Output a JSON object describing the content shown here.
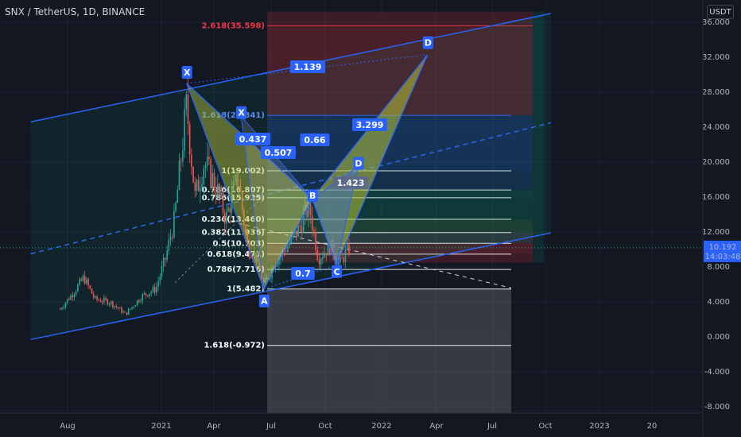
{
  "header": {
    "symbol_title": "SNX / TetherUS, 1D, BINANCE",
    "currency": "USDT"
  },
  "price_badge": {
    "price": "10.192",
    "countdown": "14:03:48",
    "color": "#2962ff"
  },
  "colors": {
    "background": "#131722",
    "channel": "#2962ff",
    "candle_up": "#26a69a",
    "candle_down": "#ef5350",
    "pattern_fill": "#b7c33a",
    "fib_extension_top": "#f23645",
    "fib_retrace_label": "#ffffff"
  },
  "chart_data": {
    "type": "candlestick",
    "title": "SNX / TetherUS, 1D, BINANCE",
    "y_unit": "USDT",
    "ylim": [
      -9,
      37
    ],
    "y_ticks": [
      "-8.000",
      "-4.000",
      "0.000",
      "4.000",
      "8.000",
      "12.000",
      "16.000",
      "20.000",
      "24.000",
      "28.000",
      "32.000",
      "36.000"
    ],
    "x_ticks": [
      "Aug",
      "2021",
      "Apr",
      "Jul",
      "Oct",
      "2022",
      "Apr",
      "Jul",
      "Oct",
      "2023",
      "20"
    ],
    "last_price": 10.192,
    "price_path": [
      {
        "t": "2020-07-20",
        "v": 3.2
      },
      {
        "t": "2020-08-10",
        "v": 5.0
      },
      {
        "t": "2020-08-28",
        "v": 6.8
      },
      {
        "t": "2020-09-15",
        "v": 4.3
      },
      {
        "t": "2020-10-10",
        "v": 4.0
      },
      {
        "t": "2020-11-05",
        "v": 2.6
      },
      {
        "t": "2020-12-01",
        "v": 4.6
      },
      {
        "t": "2020-12-25",
        "v": 5.5
      },
      {
        "t": "2021-01-10",
        "v": 9.0
      },
      {
        "t": "2021-01-25",
        "v": 13.5
      },
      {
        "t": "2021-02-14",
        "v": 26.5
      },
      {
        "t": "2021-02-28",
        "v": 16.0
      },
      {
        "t": "2021-03-15",
        "v": 20.0
      },
      {
        "t": "2021-04-05",
        "v": 17.0
      },
      {
        "t": "2021-04-20",
        "v": 13.5
      },
      {
        "t": "2021-05-10",
        "v": 18.5
      },
      {
        "t": "2021-05-25",
        "v": 10.5
      },
      {
        "t": "2021-06-10",
        "v": 9.0
      },
      {
        "t": "2021-06-22",
        "v": 5.8
      },
      {
        "t": "2021-07-10",
        "v": 8.5
      },
      {
        "t": "2021-08-01",
        "v": 10.5
      },
      {
        "t": "2021-08-20",
        "v": 12.5
      },
      {
        "t": "2021-09-05",
        "v": 15.0
      },
      {
        "t": "2021-09-20",
        "v": 9.0
      },
      {
        "t": "2021-10-10",
        "v": 10.5
      },
      {
        "t": "2021-10-25",
        "v": 8.2
      },
      {
        "t": "2021-11-05",
        "v": 9.7
      },
      {
        "t": "2021-11-12",
        "v": 10.2
      }
    ],
    "channel": {
      "upper": [
        {
          "t": "2020-06-01",
          "v": 24.6
        },
        {
          "t": "2022-10-10",
          "v": 37.0
        }
      ],
      "middle": [
        {
          "t": "2020-06-01",
          "v": 9.5
        },
        {
          "t": "2022-10-10",
          "v": 24.5
        }
      ],
      "lower": [
        {
          "t": "2020-06-01",
          "v": -0.3
        },
        {
          "t": "2022-10-10",
          "v": 11.9
        }
      ]
    },
    "harmonic_pattern": {
      "points": [
        {
          "label": "X",
          "t": "2021-02-14",
          "v": 29.0
        },
        {
          "label": "A",
          "t": "2021-06-22",
          "v": 5.482
        },
        {
          "label": "B",
          "t": "2021-09-10",
          "v": 15.8
        },
        {
          "label": "C",
          "t": "2021-10-20",
          "v": 8.2
        },
        {
          "label": "D",
          "t": "2022-03-20",
          "v": 32.3
        }
      ],
      "inner_points": [
        {
          "label": "X",
          "t": "2021-05-15",
          "v": 25.3
        },
        {
          "label": "D",
          "t": "2021-11-25",
          "v": 19.5
        }
      ],
      "ratios": [
        "1.139",
        "0.437",
        "0.507",
        "0.66",
        "3.299",
        "1.423",
        "0.7"
      ]
    },
    "fib_levels": [
      {
        "label": "2.618(35.598)",
        "price": 35.598
      },
      {
        "label": "1.618(25.341)",
        "price": 25.341
      },
      {
        "label": "1(19.002)",
        "price": 19.002
      },
      {
        "label": "0.786(16.807)",
        "price": 16.807
      },
      {
        "label": "0.786(15.925)",
        "price": 15.925
      },
      {
        "label": "0.236(13.460)",
        "price": 13.46
      },
      {
        "label": "0.382(11.936)",
        "price": 11.936
      },
      {
        "label": "0.5(10.703)",
        "price": 10.703
      },
      {
        "label": "0.618(9.471)",
        "price": 9.471
      },
      {
        "label": "0.786(7.716)",
        "price": 7.716
      },
      {
        "label": "1(5.482)",
        "price": 5.482
      },
      {
        "label": "1.618(-0.972)",
        "price": -0.972
      }
    ]
  }
}
